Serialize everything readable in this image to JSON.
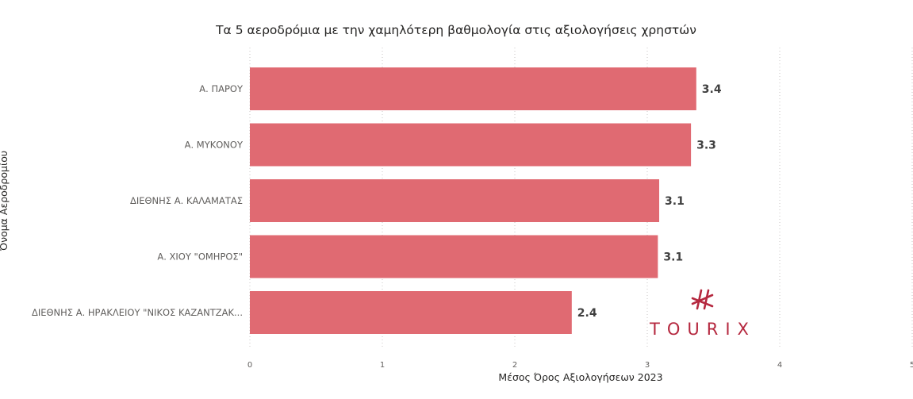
{
  "chart_data": {
    "type": "bar",
    "orientation": "horizontal",
    "title": "Τα 5 αεροδρόμια με την χαμηλότερη βαθμολογία στις αξιολογήσεις χρηστών",
    "xlabel": "Μέσος Όρος Αξιολογήσεων 2023",
    "ylabel": "Όνομα Αεροδρομίου",
    "categories": [
      "Α. ΠΑΡΟΥ",
      "Α. ΜΥΚΟΝΟΥ",
      "ΔΙΕΘΝΗΣ Α. ΚΑΛΑΜΑΤΑΣ",
      "Α. ΧΙΟΥ \"ΟΜΗΡΟΣ\"",
      "ΔΙΕΘΝΗΣ Α. ΗΡΑΚΛΕΙΟΥ \"ΝΙΚΟΣ ΚΑΖΑΝΤΖΑΚ..."
    ],
    "values": [
      3.37,
      3.33,
      3.09,
      3.08,
      2.43
    ],
    "data_labels": [
      "3.4",
      "3.3",
      "3.1",
      "3.1",
      "2.4"
    ],
    "xlim": [
      0,
      5
    ],
    "xticks": [
      "0",
      "1",
      "2",
      "3",
      "4",
      "5"
    ],
    "grid": "vertical dotted",
    "bar_color": "#E06A72"
  },
  "logo": {
    "text": "TOURIX",
    "icon": "tourix-hash-icon",
    "color": "#B5283F"
  }
}
